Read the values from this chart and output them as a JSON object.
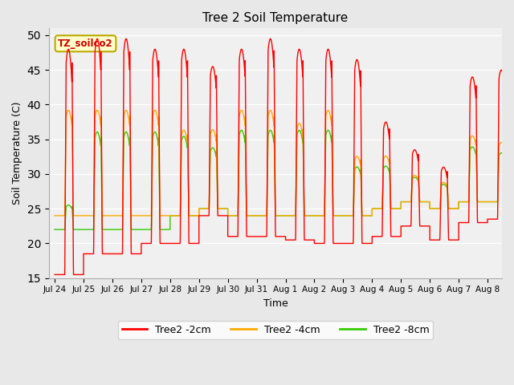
{
  "title": "Tree 2 Soil Temperature",
  "xlabel": "Time",
  "ylabel": "Soil Temperature (C)",
  "ylim": [
    15,
    51
  ],
  "yticks": [
    15,
    20,
    25,
    30,
    35,
    40,
    45,
    50
  ],
  "annotation": "TZ_soilco2",
  "legend": [
    "Tree2 -2cm",
    "Tree2 -4cm",
    "Tree2 -8cm"
  ],
  "line_colors": [
    "#ff0000",
    "#ffaa00",
    "#33cc00"
  ],
  "background_color": "#e8e8e8",
  "plot_bg_color": "#f0f0f0",
  "x_tick_labels": [
    "Jul 24",
    "Jul 25",
    "Jul 26",
    "Jul 27",
    "Jul 28",
    "Jul 29",
    "Jul 30",
    "Jul 31",
    "Aug 1",
    "Aug 2",
    "Aug 3",
    "Aug 4",
    "Aug 5",
    "Aug 6",
    "Aug 7",
    "Aug 8"
  ],
  "x_tick_positions": [
    0,
    1,
    2,
    3,
    4,
    5,
    6,
    7,
    8,
    9,
    10,
    11,
    12,
    13,
    14,
    15
  ],
  "days_data": [
    {
      "day": 0,
      "p2": 48,
      "p4": 40,
      "p8": 26,
      "t2": 15.5,
      "t4": 24,
      "t8": 22,
      "phase": 0.35
    },
    {
      "day": 1,
      "p2": 49.5,
      "p4": 40,
      "p8": 38,
      "t2": 18.5,
      "t4": 24,
      "t8": 22,
      "phase": 0.35
    },
    {
      "day": 2,
      "p2": 49.5,
      "p4": 40,
      "p8": 38,
      "t2": 18.5,
      "t4": 24,
      "t8": 22,
      "phase": 0.35
    },
    {
      "day": 3,
      "p2": 48,
      "p4": 40,
      "p8": 38,
      "t2": 20,
      "t4": 24,
      "t8": 22,
      "phase": 0.35
    },
    {
      "day": 4,
      "p2": 48,
      "p4": 37,
      "p8": 37,
      "t2": 20,
      "t4": 24,
      "t8": 24,
      "phase": 0.35
    },
    {
      "day": 5,
      "p2": 45.5,
      "p4": 37,
      "p8": 35,
      "t2": 24,
      "t4": 25,
      "t8": 25,
      "phase": 0.35
    },
    {
      "day": 6,
      "p2": 48,
      "p4": 40,
      "p8": 38,
      "t2": 21,
      "t4": 24,
      "t8": 24,
      "phase": 0.35
    },
    {
      "day": 7,
      "p2": 49.5,
      "p4": 40,
      "p8": 38,
      "t2": 21,
      "t4": 24,
      "t8": 24,
      "phase": 0.35
    },
    {
      "day": 8,
      "p2": 48,
      "p4": 38,
      "p8": 38,
      "t2": 20.5,
      "t4": 24,
      "t8": 24,
      "phase": 0.35
    },
    {
      "day": 9,
      "p2": 48,
      "p4": 40,
      "p8": 38,
      "t2": 20,
      "t4": 24,
      "t8": 24,
      "phase": 0.35
    },
    {
      "day": 10,
      "p2": 46.5,
      "p4": 33,
      "p8": 32,
      "t2": 20,
      "t4": 24,
      "t8": 24,
      "phase": 0.35
    },
    {
      "day": 11,
      "p2": 37.5,
      "p4": 33,
      "p8": 32,
      "t2": 21,
      "t4": 25,
      "t8": 25,
      "phase": 0.35
    },
    {
      "day": 12,
      "p2": 33.5,
      "p4": 30,
      "p8": 30,
      "t2": 22.5,
      "t4": 26,
      "t8": 26,
      "phase": 0.35
    },
    {
      "day": 13,
      "p2": 31,
      "p4": 29,
      "p8": 29,
      "t2": 20.5,
      "t4": 25,
      "t8": 25,
      "phase": 0.35
    },
    {
      "day": 14,
      "p2": 44,
      "p4": 36,
      "p8": 35,
      "t2": 23,
      "t4": 26,
      "t8": 26,
      "phase": 0.35
    },
    {
      "day": 15,
      "p2": 45,
      "p4": 35,
      "p8": 34,
      "t2": 23.5,
      "t4": 26,
      "t8": 26,
      "phase": 0.35
    }
  ]
}
